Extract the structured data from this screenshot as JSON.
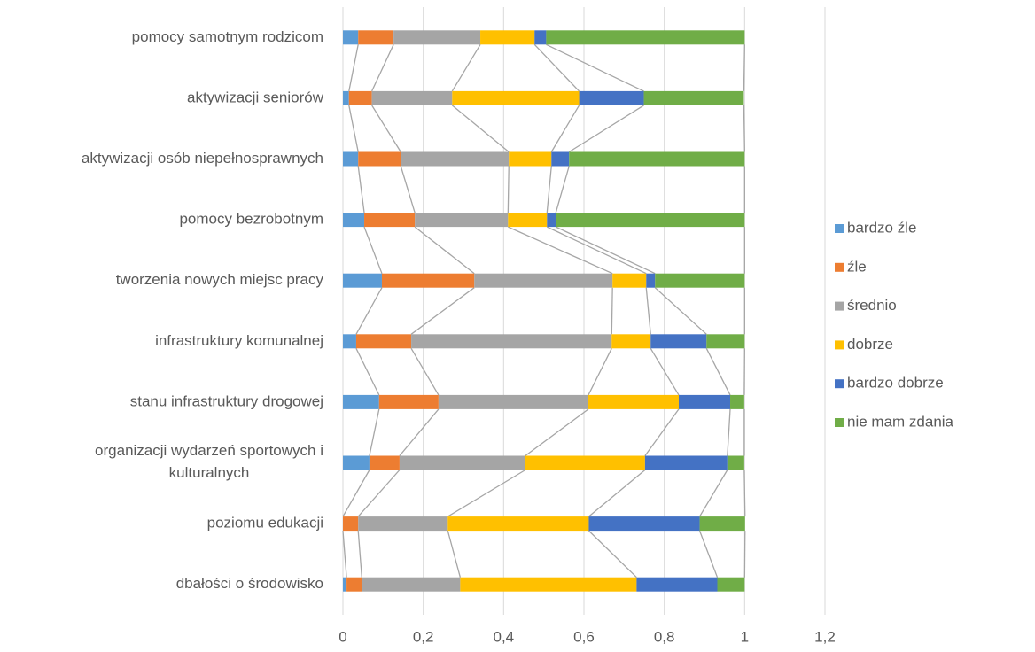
{
  "chart_data": {
    "type": "stacked-barh",
    "categories": [
      "pomocy samotnym rodzicom",
      "aktywizacji seniorów",
      "aktywizacji osób niepełnosprawnych",
      "pomocy bezrobotnym",
      "tworzenia nowych miejsc pracy",
      "infrastruktury komunalnej",
      "stanu infrastruktury drogowej",
      "organizacji wydarzeń sportowych i kulturalnych",
      "poziomu edukacji",
      "dbałości o środowisko"
    ],
    "series": [
      {
        "name": "bardzo źle",
        "color": "#5b9bd5",
        "values": [
          0.038,
          0.015,
          0.038,
          0.053,
          0.097,
          0.033,
          0.09,
          0.066,
          0,
          0.009
        ]
      },
      {
        "name": "źle",
        "color": "#ed7d31",
        "values": [
          0.088,
          0.057,
          0.106,
          0.126,
          0.23,
          0.137,
          0.148,
          0.075,
          0.038,
          0.038
        ]
      },
      {
        "name": "średnio",
        "color": "#a5a5a5",
        "values": [
          0.216,
          0.2,
          0.269,
          0.232,
          0.344,
          0.499,
          0.373,
          0.313,
          0.223,
          0.245
        ]
      },
      {
        "name": "dobrze",
        "color": "#ffc000",
        "values": [
          0.135,
          0.316,
          0.106,
          0.097,
          0.084,
          0.097,
          0.225,
          0.298,
          0.351,
          0.439
        ]
      },
      {
        "name": "bardzo dobrze",
        "color": "#4472c4",
        "values": [
          0.029,
          0.161,
          0.044,
          0.022,
          0.022,
          0.139,
          0.128,
          0.205,
          0.276,
          0.201
        ]
      },
      {
        "name": "nie mam zdania",
        "color": "#70ad47",
        "values": [
          0.494,
          0.249,
          0.437,
          0.47,
          0.223,
          0.095,
          0.035,
          0.042,
          0.113,
          0.068
        ]
      }
    ],
    "xlim": [
      0,
      1.2
    ],
    "xticks": [
      0,
      {
        "value": 0.2,
        "label": "0,2"
      },
      {
        "value": 0.4,
        "label": "0,4"
      },
      {
        "value": 0.6,
        "label": "0,6"
      },
      {
        "value": 0.8,
        "label": "0,8"
      },
      1,
      {
        "value": 1.2,
        "label": "1,2"
      }
    ],
    "grid": true,
    "series_lines": true,
    "legend": "right"
  }
}
